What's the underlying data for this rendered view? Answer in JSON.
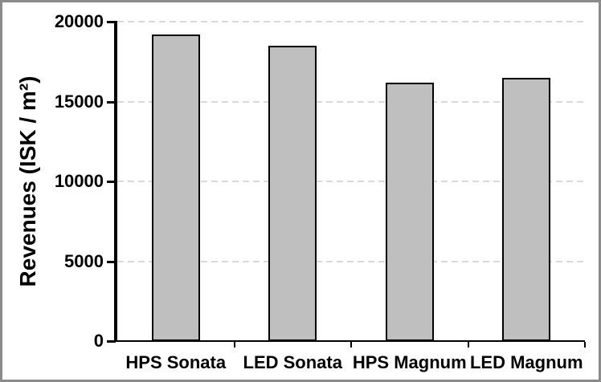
{
  "chart_data": {
    "type": "bar",
    "title": "",
    "categories": [
      "HPS Sonata",
      "LED Sonata",
      "HPS Magnum",
      "LED Magnum"
    ],
    "values": [
      19200,
      18500,
      16200,
      16500
    ],
    "xlabel": "",
    "ylabel": "Revenues (ISK / m²)",
    "ylim": [
      0,
      20000
    ],
    "yticks": [
      0,
      5000,
      10000,
      15000,
      20000
    ],
    "grid": "horizontal-dashed",
    "legend_position": "none",
    "bar_fill": "#bfbfbf",
    "bar_border": "#000000",
    "gridline_color": "#d9d9d9",
    "axis_color": "#000000",
    "frame_color": "#8a8a8a"
  }
}
